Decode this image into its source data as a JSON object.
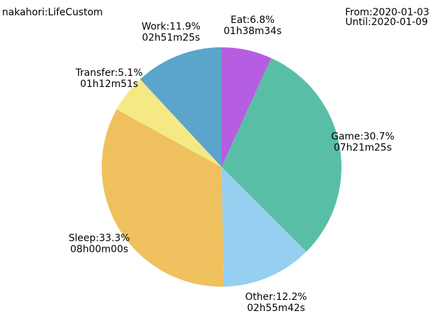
{
  "header": {
    "title": "nakahori:LifeCustom",
    "from": "From:2020-01-03",
    "until": "Until:2020-01-09"
  },
  "chart_data": {
    "type": "pie",
    "start": "top",
    "direction": "clockwise",
    "slices": [
      {
        "name": "Eat",
        "percent": 6.8,
        "duration": "01h38m34s",
        "label": "Eat:6.8%",
        "color": "#b55ee2"
      },
      {
        "name": "Game",
        "percent": 30.7,
        "duration": "07h21m25s",
        "label": "Game:30.7%",
        "color": "#58bfa6"
      },
      {
        "name": "Other",
        "percent": 12.2,
        "duration": "02h55m42s",
        "label": "Other:12.2%",
        "color": "#96cfef"
      },
      {
        "name": "Sleep",
        "percent": 33.3,
        "duration": "08h00m00s",
        "label": "Sleep:33.3%",
        "color": "#eec15e"
      },
      {
        "name": "Transfer",
        "percent": 5.1,
        "duration": "01h12m51s",
        "label": "Transfer:5.1%",
        "color": "#f5e986"
      },
      {
        "name": "Work",
        "percent": 11.9,
        "duration": "02h51m25s",
        "label": "Work:11.9%",
        "color": "#5ba5cc"
      }
    ]
  }
}
